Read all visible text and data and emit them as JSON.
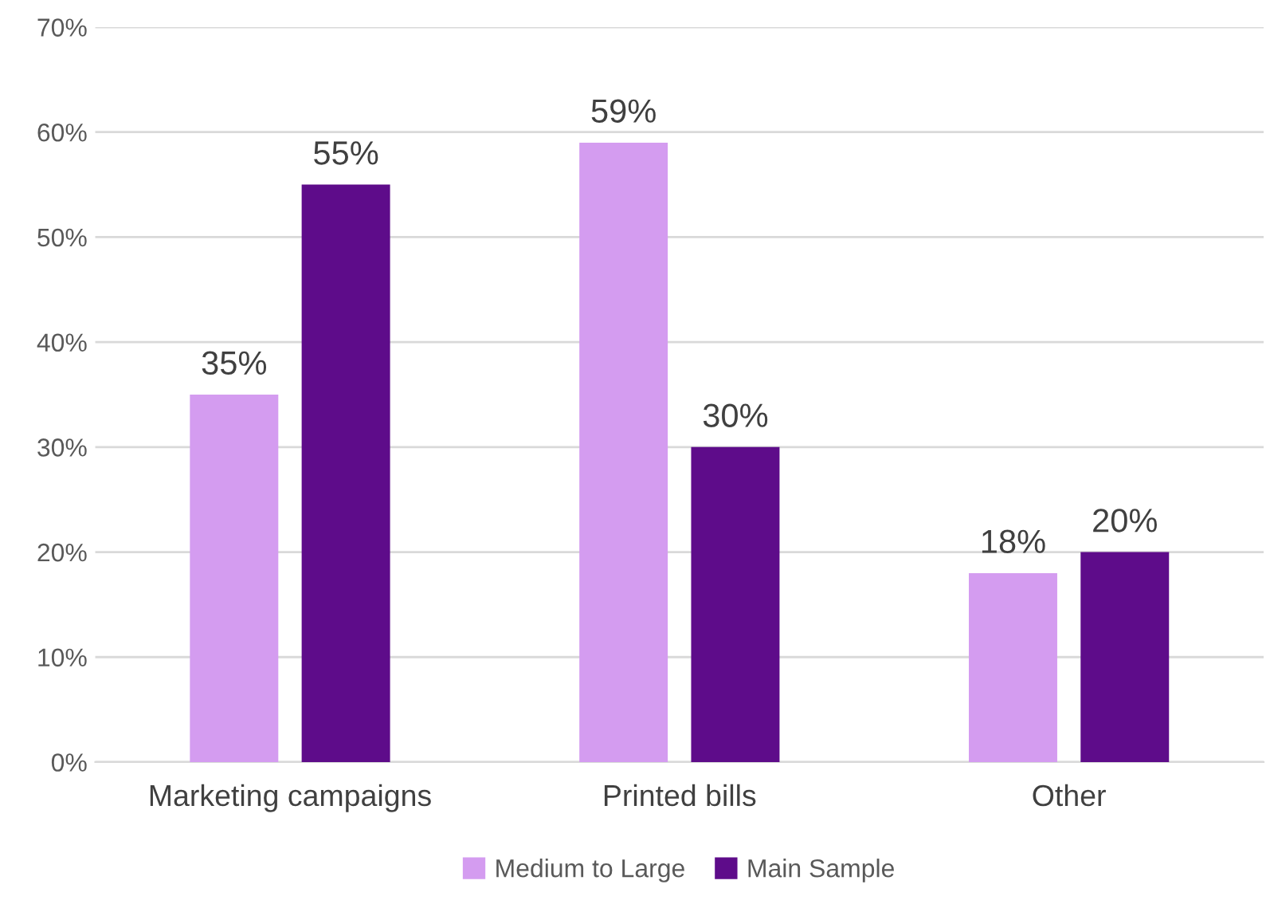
{
  "chart_data": {
    "type": "bar",
    "categories": [
      "Marketing campaigns",
      "Printed bills",
      "Other"
    ],
    "series": [
      {
        "name": "Medium to Large",
        "color": "#d49cf0",
        "values": [
          35,
          59,
          18
        ],
        "value_labels": [
          "35%",
          "59%",
          "18%"
        ]
      },
      {
        "name": "Main Sample",
        "color": "#5e0c8a",
        "values": [
          55,
          30,
          20
        ],
        "value_labels": [
          "55%",
          "30%",
          "20%"
        ]
      }
    ],
    "ylim": [
      0,
      70
    ],
    "yticks": [
      {
        "value": 0,
        "label": "0%"
      },
      {
        "value": 10,
        "label": "10%"
      },
      {
        "value": 20,
        "label": "20%"
      },
      {
        "value": 30,
        "label": "30%"
      },
      {
        "value": 40,
        "label": "40%"
      },
      {
        "value": 50,
        "label": "50%"
      },
      {
        "value": 60,
        "label": "60%"
      },
      {
        "value": 70,
        "label": "70%"
      }
    ],
    "grid": "y",
    "legend": "bottom"
  }
}
